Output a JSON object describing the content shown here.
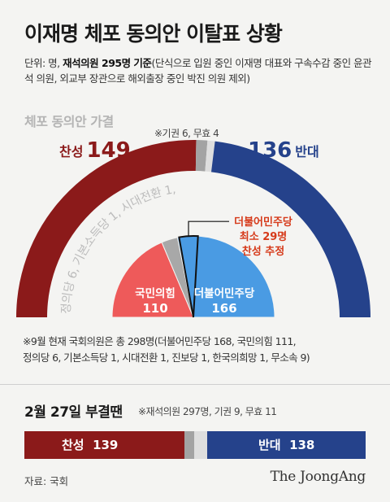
{
  "title": "이재명 체포 동의안 이탈표 상황",
  "unit": {
    "prefix": "단위: 명, ",
    "bold": "재석의원 295명 기준",
    "rest": "(단식으로 입원 중인 이재명 대표와 구속수감 중인 윤관석 의원, 외교부 장관으로 해외출장 중인 박진 의원 제외)"
  },
  "section_label": "체포 동의안 가결",
  "top_note": "※기권 6, 무효 4",
  "for": {
    "text": "찬성",
    "value": "149"
  },
  "against": {
    "value": "136",
    "text": "반대"
  },
  "inner_labels": {
    "ppp": {
      "name": "국민의힘",
      "value": "110"
    },
    "dem": {
      "name": "더불어민주당",
      "value": "166"
    },
    "small_parties": "정의당 6, 기본소득당 1, 시대전환 1, 진보당 1, 한국의희망 1, 무소속 9"
  },
  "callout": {
    "line1": "더불어민주당",
    "line2": "최소 29명",
    "line3": "찬성 추정"
  },
  "footnote": {
    "line1": "※9월 현재 국회의원은 총 298명(더불어민주당 168, 국민의힘 111,",
    "line2": "정의당 6, 기본소득당 1, 시대전환 1, 진보당 1, 한국의희망 1, 무소속 9)"
  },
  "feb": {
    "title": "2월 27일 부결땐",
    "note": "※재석의원 297명, 기권 9, 무효 11",
    "for_text": "찬성",
    "for_value": "139",
    "against_text": "반대",
    "against_value": "138"
  },
  "source": "자료: 국회",
  "logo": "The JoongAng",
  "colors": {
    "for": "#8b1a1a",
    "against": "#25428b",
    "abstain": "#a3a3a3",
    "invalid": "#dedede",
    "ppp": "#ee5a5a",
    "dem": "#4a9be3",
    "others": "#a8a8a8"
  },
  "chart_data": [
    {
      "type": "pie",
      "title": "체포 동의안 가결",
      "subtitle": "outer half-donut: vote result",
      "labels": [
        "찬성",
        "기권",
        "무효",
        "반대"
      ],
      "values": [
        149,
        6,
        4,
        136
      ]
    },
    {
      "type": "pie",
      "subtitle": "inner half-circle: seats",
      "labels": [
        "국민의힘",
        "정의당 외",
        "더불어민주당"
      ],
      "values": [
        110,
        19,
        166
      ]
    },
    {
      "type": "bar",
      "title": "2월 27일 부결땐",
      "categories": [
        "찬성",
        "기권",
        "무효",
        "반대"
      ],
      "values": [
        139,
        9,
        11,
        138
      ]
    }
  ]
}
